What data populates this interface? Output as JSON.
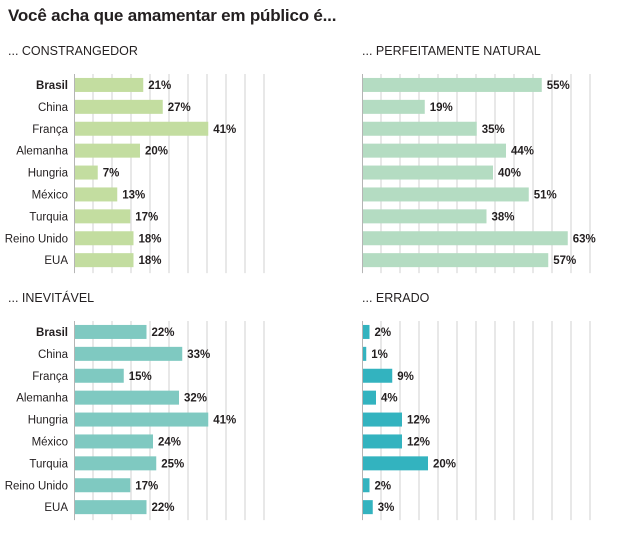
{
  "title": "Você acha que amamentar em público é...",
  "chart_data": [
    {
      "type": "bar",
      "orientation": "horizontal",
      "title": "... CONSTRANGEDOR",
      "categories": [
        "Brasil",
        "China",
        "França",
        "Alemanha",
        "Hungria",
        "México",
        "Turquia",
        "Reino Unido",
        "EUA"
      ],
      "values": [
        21,
        27,
        41,
        20,
        7,
        13,
        17,
        18,
        18
      ],
      "labels": [
        "21%",
        "27%",
        "41%",
        "20%",
        "7%",
        "13%",
        "17%",
        "18%",
        "18%"
      ],
      "xlim": [
        0,
        70
      ],
      "bold_category": "Brasil",
      "grid": true,
      "color": "#c3dda0"
    },
    {
      "type": "bar",
      "orientation": "horizontal",
      "title": "... PERFEITAMENTE NATURAL",
      "categories": [
        "Brasil",
        "China",
        "França",
        "Alemanha",
        "Hungria",
        "México",
        "Turquia",
        "Reino Unido",
        "EUA"
      ],
      "values": [
        55,
        19,
        35,
        44,
        40,
        51,
        38,
        63,
        57
      ],
      "labels": [
        "55%",
        "19%",
        "35%",
        "44%",
        "40%",
        "51%",
        "38%",
        "63%",
        "57%"
      ],
      "xlim": [
        0,
        70
      ],
      "bold_category": "Brasil",
      "grid": true,
      "color": "#b4dcc2"
    },
    {
      "type": "bar",
      "orientation": "horizontal",
      "title": "... INEVITÁVEL",
      "categories": [
        "Brasil",
        "China",
        "França",
        "Alemanha",
        "Hungria",
        "México",
        "Turquia",
        "Reino Unido",
        "EUA"
      ],
      "values": [
        22,
        33,
        15,
        32,
        41,
        24,
        25,
        17,
        22
      ],
      "labels": [
        "22%",
        "33%",
        "15%",
        "32%",
        "41%",
        "24%",
        "25%",
        "17%",
        "22%"
      ],
      "xlim": [
        0,
        70
      ],
      "bold_category": "Brasil",
      "grid": true,
      "color": "#7fc9c1"
    },
    {
      "type": "bar",
      "orientation": "horizontal",
      "title": "... ERRADO",
      "categories": [
        "Brasil",
        "China",
        "França",
        "Alemanha",
        "Hungria",
        "México",
        "Turquia",
        "Reino Unido",
        "EUA"
      ],
      "values": [
        2,
        1,
        9,
        4,
        12,
        12,
        20,
        2,
        3
      ],
      "labels": [
        "2%",
        "1%",
        "9%",
        "4%",
        "12%",
        "12%",
        "20%",
        "2%",
        "3%"
      ],
      "xlim": [
        0,
        70
      ],
      "bold_category": "Brasil",
      "grid": true,
      "color": "#33b3bf"
    }
  ]
}
